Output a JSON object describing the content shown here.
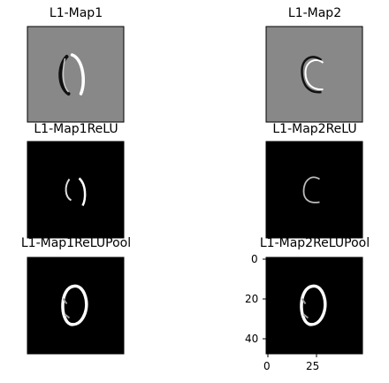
{
  "chart_data": [
    {
      "type": "heatmap",
      "title": "L1-Map1",
      "style": "gray",
      "shape": "o-edge-h"
    },
    {
      "type": "heatmap",
      "title": "L1-Map2",
      "style": "gray",
      "shape": "c-edge-v"
    },
    {
      "type": "heatmap",
      "title": "L1-Map1ReLU",
      "style": "dark",
      "shape": "relu1"
    },
    {
      "type": "heatmap",
      "title": "L1-Map2ReLU",
      "style": "dark",
      "shape": "relu2"
    },
    {
      "type": "heatmap",
      "title": "L1-Map1ReLUPool",
      "style": "dark",
      "shape": "pool"
    },
    {
      "type": "heatmap",
      "title": "L1-Map2ReLUPool",
      "style": "dark",
      "shape": "pool",
      "xticks": [
        "0",
        "25"
      ],
      "yticks": [
        "0",
        "20",
        "40"
      ]
    }
  ],
  "colors": {
    "gray_bg": "#888888",
    "dark_bg": "#000000",
    "stroke": "#ffffff",
    "shadow": "#111111"
  }
}
